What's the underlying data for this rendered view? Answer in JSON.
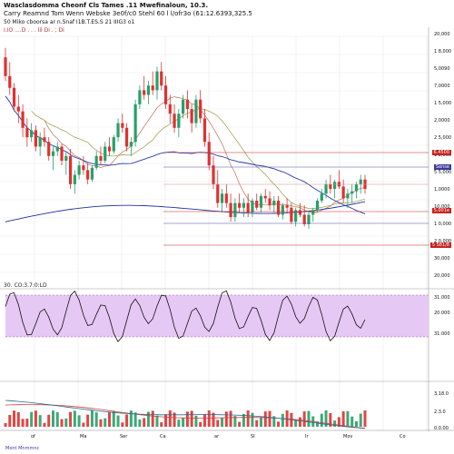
{
  "header": {
    "line1": "Wasclasdomma  Cheonf  Cls  Tames  .11  Mwefinaloun,  10.3.",
    "line2": "Carry  Reamnd Tom Wenn Webske  3e0f/c0  Stehl 60 l l/ofr3o (61:12.6393,325.5",
    "line3": "50 Miko  cboorsa  ar  n.Snaf  I1B.T.ES.S  21  IIIG3  o1",
    "line4": "I.IO  ....D  .  .  .  lil  Di  .  ;  Di"
  },
  "price_axis": {
    "labels": [
      "20,000",
      "1 8,000",
      "5,0090",
      "7,0000",
      "1 5,000",
      "2,0000",
      "2 5,000",
      "1 2,000",
      "5 5,000",
      "1,0000",
      "10,000",
      "1 0,000",
      "2 0,000",
      "30,000",
      "20,000"
    ],
    "tags": [
      {
        "text": "6.4500",
        "color": "#c82020"
      },
      {
        "text": "Sense",
        "color": "#3a3a9a"
      },
      {
        "text": "5,001e",
        "color": "#c82020"
      },
      {
        "text": "5 581/8",
        "color": "#c82020"
      }
    ]
  },
  "rsi": {
    "header": "30.  CO:3.7:0:LD",
    "axis_labels": [
      "31.000",
      "20.000",
      "31.000"
    ],
    "overbought": 70,
    "oversold": 30
  },
  "macd": {
    "axis_labels": [
      "3.18.0",
      "2.3.0",
      "0.0.00"
    ]
  },
  "time_axis": {
    "labels": [
      "of",
      "Ma",
      "Ser",
      "Ca",
      "ar",
      "SI",
      "Ir",
      "Mov",
      "Co"
    ],
    "footer": "Mont  Mnmmnc"
  },
  "colors": {
    "up": "#27a06a",
    "down": "#e03030",
    "ma_fast": "#c04040",
    "ma_mid": "#2a3aaa",
    "ma_slow": "#2030a0",
    "rsi_band": "#e6c8f4",
    "hline_red": "#c82020",
    "hline_blue": "#4a4aa8"
  },
  "candles": [
    [
      78,
      82,
      68,
      70
    ],
    [
      70,
      76,
      62,
      65
    ],
    [
      65,
      67,
      55,
      57
    ],
    [
      57,
      62,
      50,
      55
    ],
    [
      55,
      58,
      44,
      48
    ],
    [
      48,
      52,
      40,
      44
    ],
    [
      44,
      50,
      42,
      47
    ],
    [
      47,
      49,
      38,
      40
    ],
    [
      40,
      46,
      36,
      44
    ],
    [
      44,
      48,
      40,
      42
    ],
    [
      42,
      44,
      34,
      36
    ],
    [
      36,
      40,
      30,
      38
    ],
    [
      38,
      42,
      36,
      40
    ],
    [
      40,
      41,
      32,
      34
    ],
    [
      34,
      38,
      28,
      36
    ],
    [
      36,
      39,
      22,
      24
    ],
    [
      24,
      30,
      20,
      28
    ],
    [
      28,
      34,
      26,
      32
    ],
    [
      32,
      36,
      28,
      30
    ],
    [
      30,
      33,
      24,
      26
    ],
    [
      26,
      32,
      25,
      31
    ],
    [
      31,
      38,
      30,
      36
    ],
    [
      36,
      40,
      32,
      34
    ],
    [
      34,
      42,
      33,
      40
    ],
    [
      40,
      44,
      36,
      38
    ],
    [
      38,
      45,
      37,
      44
    ],
    [
      44,
      52,
      42,
      50
    ],
    [
      50,
      54,
      46,
      48
    ],
    [
      48,
      50,
      38,
      40
    ],
    [
      40,
      44,
      36,
      42
    ],
    [
      42,
      60,
      40,
      58
    ],
    [
      58,
      66,
      56,
      64
    ],
    [
      64,
      70,
      60,
      62
    ],
    [
      62,
      68,
      58,
      66
    ],
    [
      66,
      72,
      62,
      64
    ],
    [
      64,
      74,
      60,
      72
    ],
    [
      72,
      76,
      64,
      66
    ],
    [
      66,
      70,
      56,
      58
    ],
    [
      58,
      62,
      50,
      54
    ],
    [
      54,
      58,
      46,
      48
    ],
    [
      48,
      56,
      44,
      54
    ],
    [
      54,
      62,
      52,
      60
    ],
    [
      60,
      64,
      52,
      56
    ],
    [
      56,
      58,
      46,
      50
    ],
    [
      50,
      62,
      48,
      60
    ],
    [
      60,
      64,
      50,
      52
    ],
    [
      52,
      56,
      40,
      42
    ],
    [
      42,
      46,
      30,
      32
    ],
    [
      32,
      36,
      22,
      24
    ],
    [
      24,
      30,
      14,
      16
    ],
    [
      16,
      22,
      12,
      20
    ],
    [
      20,
      24,
      14,
      16
    ],
    [
      16,
      20,
      8,
      10
    ],
    [
      10,
      18,
      8,
      16
    ],
    [
      16,
      20,
      12,
      14
    ],
    [
      14,
      18,
      10,
      16
    ],
    [
      16,
      20,
      10,
      12
    ],
    [
      12,
      18,
      10,
      17
    ],
    [
      17,
      20,
      13,
      14
    ],
    [
      14,
      20,
      12,
      19
    ],
    [
      19,
      22,
      16,
      18
    ],
    [
      18,
      21,
      13,
      15
    ],
    [
      15,
      19,
      12,
      17
    ],
    [
      17,
      19,
      10,
      11
    ],
    [
      11,
      16,
      9,
      15
    ],
    [
      15,
      18,
      12,
      14
    ],
    [
      14,
      16,
      7,
      8
    ],
    [
      8,
      14,
      6,
      13
    ],
    [
      13,
      16,
      10,
      11
    ],
    [
      11,
      15,
      6,
      7
    ],
    [
      7,
      12,
      5,
      11
    ],
    [
      11,
      14,
      8,
      13
    ],
    [
      13,
      18,
      12,
      17
    ],
    [
      17,
      22,
      16,
      20
    ],
    [
      20,
      26,
      18,
      24
    ],
    [
      24,
      28,
      20,
      22
    ],
    [
      22,
      26,
      18,
      25
    ],
    [
      25,
      30,
      22,
      23
    ],
    [
      23,
      26,
      16,
      18
    ],
    [
      18,
      22,
      14,
      20
    ],
    [
      20,
      24,
      16,
      21
    ],
    [
      21,
      25,
      18,
      24
    ],
    [
      24,
      28,
      20,
      26
    ],
    [
      26,
      28,
      20,
      22
    ]
  ]
}
